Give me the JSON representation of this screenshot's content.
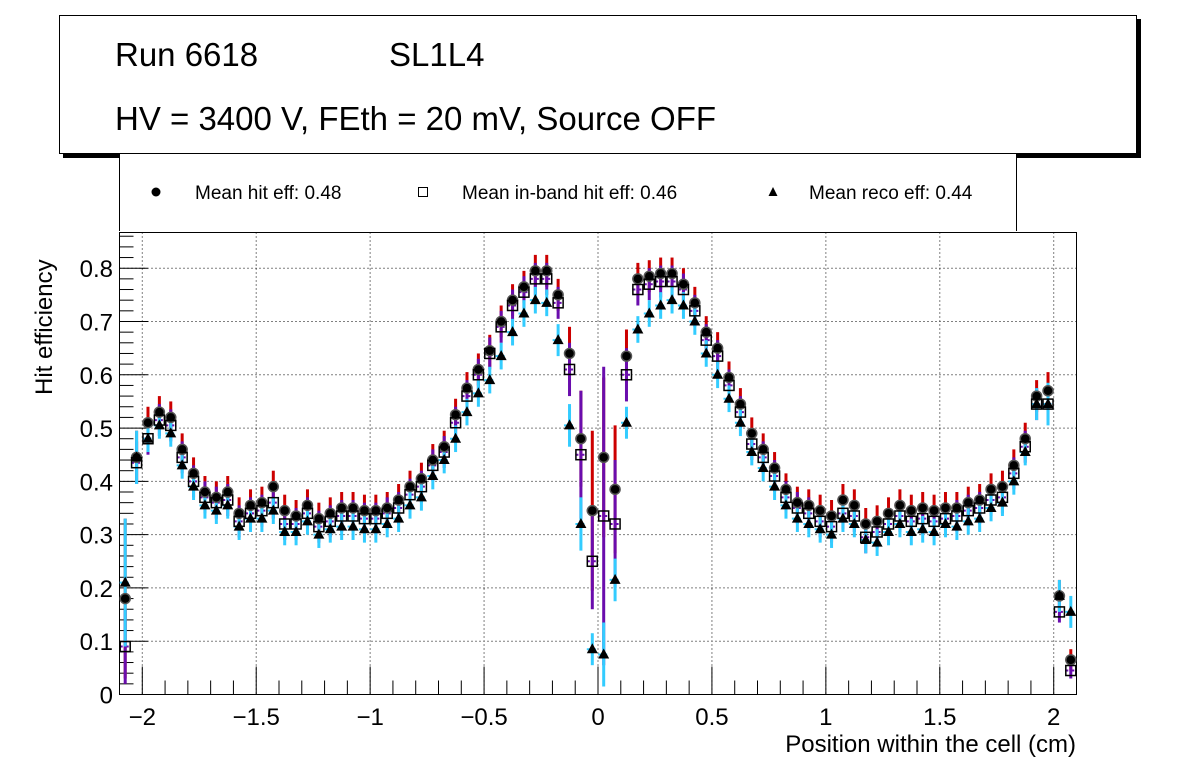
{
  "title_box": {
    "run": "Run 6618",
    "layer": "SL1L4",
    "conditions": "HV = 3400 V, FEth = 20 mV, Source OFF"
  },
  "legend": [
    {
      "marker": "filled-circle",
      "label": "Mean hit  eff: 0.48"
    },
    {
      "marker": "open-square",
      "label": "Mean in-band hit eff: 0.46"
    },
    {
      "marker": "filled-triangle",
      "label": "Mean reco eff: 0.44"
    }
  ],
  "colors": {
    "hit_error": "#cc0000",
    "inband_error": "#6a0dad",
    "reco_error": "#33ccff",
    "marker": "#000000"
  },
  "chart_data": {
    "type": "scatter",
    "title": "",
    "xlabel": "Position within the cell (cm)",
    "ylabel": "Hit efficiency",
    "xlim": [
      -2.1,
      2.1
    ],
    "ylim": [
      0,
      0.867
    ],
    "grid": true,
    "legend_position": "top",
    "x_ticks": [
      -2,
      -1.5,
      -1,
      -0.5,
      0,
      0.5,
      1,
      1.5,
      2
    ],
    "x_tick_labels": [
      "−2",
      "−1.5",
      "−1",
      "−0.5",
      "0",
      "0.5",
      "1",
      "1.5",
      "2"
    ],
    "y_ticks": [
      0,
      0.1,
      0.2,
      0.3,
      0.4,
      0.5,
      0.6,
      0.7,
      0.8
    ],
    "y_tick_labels": [
      "0",
      "0.1",
      "0.2",
      "0.3",
      "0.4",
      "0.5",
      "0.6",
      "0.7",
      "0.8"
    ],
    "x": [
      -2.075,
      -2.025,
      -1.975,
      -1.925,
      -1.875,
      -1.825,
      -1.775,
      -1.725,
      -1.675,
      -1.625,
      -1.575,
      -1.525,
      -1.475,
      -1.425,
      -1.375,
      -1.325,
      -1.275,
      -1.225,
      -1.175,
      -1.125,
      -1.075,
      -1.025,
      -0.975,
      -0.925,
      -0.875,
      -0.825,
      -0.775,
      -0.725,
      -0.675,
      -0.625,
      -0.575,
      -0.525,
      -0.475,
      -0.425,
      -0.375,
      -0.325,
      -0.275,
      -0.225,
      -0.175,
      -0.125,
      -0.075,
      -0.025,
      0.025,
      0.075,
      0.125,
      0.175,
      0.225,
      0.275,
      0.325,
      0.375,
      0.425,
      0.475,
      0.525,
      0.575,
      0.625,
      0.675,
      0.725,
      0.775,
      0.825,
      0.875,
      0.925,
      0.975,
      1.025,
      1.075,
      1.125,
      1.175,
      1.225,
      1.275,
      1.325,
      1.375,
      1.425,
      1.475,
      1.525,
      1.575,
      1.625,
      1.675,
      1.725,
      1.775,
      1.825,
      1.875,
      1.925,
      1.975,
      2.025,
      2.075
    ],
    "series": [
      {
        "name": "Mean hit eff",
        "marker": "filled-circle",
        "error_color": "#cc0000",
        "values": [
          0.18,
          0.445,
          0.51,
          0.53,
          0.52,
          0.46,
          0.415,
          0.38,
          0.37,
          0.38,
          0.34,
          0.355,
          0.36,
          0.39,
          0.345,
          0.335,
          0.355,
          0.33,
          0.34,
          0.35,
          0.35,
          0.345,
          0.345,
          0.35,
          0.365,
          0.39,
          0.405,
          0.44,
          0.465,
          0.525,
          0.575,
          0.61,
          0.645,
          0.7,
          0.74,
          0.765,
          0.795,
          0.795,
          0.75,
          0.64,
          0.48,
          0.345,
          0.445,
          0.385,
          0.635,
          0.78,
          0.785,
          0.79,
          0.79,
          0.77,
          0.735,
          0.68,
          0.65,
          0.595,
          0.545,
          0.49,
          0.46,
          0.425,
          0.385,
          0.36,
          0.355,
          0.345,
          0.335,
          0.365,
          0.355,
          0.32,
          0.325,
          0.34,
          0.355,
          0.345,
          0.35,
          0.345,
          0.35,
          0.35,
          0.36,
          0.365,
          0.385,
          0.39,
          0.43,
          0.48,
          0.56,
          0.57,
          0.185,
          0.065
        ],
        "errors": [
          0.15,
          0.05,
          0.03,
          0.03,
          0.03,
          0.03,
          0.03,
          0.03,
          0.03,
          0.03,
          0.03,
          0.03,
          0.03,
          0.03,
          0.03,
          0.03,
          0.03,
          0.03,
          0.03,
          0.03,
          0.03,
          0.03,
          0.03,
          0.03,
          0.03,
          0.03,
          0.03,
          0.03,
          0.03,
          0.03,
          0.03,
          0.03,
          0.03,
          0.03,
          0.03,
          0.03,
          0.03,
          0.03,
          0.03,
          0.05,
          0.09,
          0.15,
          0.15,
          0.12,
          0.05,
          0.03,
          0.03,
          0.03,
          0.03,
          0.03,
          0.03,
          0.03,
          0.03,
          0.03,
          0.03,
          0.03,
          0.03,
          0.03,
          0.03,
          0.03,
          0.03,
          0.03,
          0.03,
          0.03,
          0.03,
          0.03,
          0.03,
          0.03,
          0.03,
          0.03,
          0.03,
          0.03,
          0.03,
          0.03,
          0.03,
          0.03,
          0.03,
          0.03,
          0.03,
          0.03,
          0.03,
          0.035,
          0.03,
          0.02
        ]
      },
      {
        "name": "Mean in-band hit eff",
        "marker": "open-square",
        "error_color": "#6a0dad",
        "values": [
          0.09,
          0.435,
          0.48,
          0.515,
          0.505,
          0.445,
          0.4,
          0.37,
          0.36,
          0.365,
          0.325,
          0.34,
          0.345,
          0.36,
          0.32,
          0.32,
          0.34,
          0.315,
          0.325,
          0.335,
          0.335,
          0.33,
          0.33,
          0.34,
          0.35,
          0.375,
          0.39,
          0.43,
          0.455,
          0.51,
          0.56,
          0.6,
          0.64,
          0.69,
          0.73,
          0.755,
          0.78,
          0.78,
          0.735,
          0.61,
          0.45,
          0.25,
          0.335,
          0.32,
          0.6,
          0.76,
          0.77,
          0.775,
          0.775,
          0.76,
          0.72,
          0.665,
          0.635,
          0.58,
          0.53,
          0.47,
          0.445,
          0.41,
          0.37,
          0.35,
          0.34,
          0.325,
          0.315,
          0.34,
          0.335,
          0.295,
          0.305,
          0.32,
          0.335,
          0.325,
          0.33,
          0.325,
          0.33,
          0.335,
          0.345,
          0.35,
          0.365,
          0.37,
          0.415,
          0.465,
          0.545,
          0.545,
          0.155,
          0.045
        ],
        "errors": [
          0.07,
          0.04,
          0.03,
          0.03,
          0.03,
          0.03,
          0.03,
          0.03,
          0.03,
          0.03,
          0.03,
          0.03,
          0.03,
          0.03,
          0.03,
          0.03,
          0.03,
          0.03,
          0.03,
          0.03,
          0.03,
          0.03,
          0.03,
          0.03,
          0.03,
          0.03,
          0.03,
          0.03,
          0.03,
          0.03,
          0.03,
          0.03,
          0.03,
          0.03,
          0.03,
          0.03,
          0.03,
          0.03,
          0.03,
          0.05,
          0.12,
          0.09,
          0.28,
          0.12,
          0.05,
          0.03,
          0.03,
          0.03,
          0.03,
          0.03,
          0.03,
          0.03,
          0.03,
          0.03,
          0.03,
          0.03,
          0.03,
          0.03,
          0.03,
          0.03,
          0.03,
          0.03,
          0.03,
          0.03,
          0.03,
          0.03,
          0.03,
          0.03,
          0.03,
          0.03,
          0.03,
          0.03,
          0.03,
          0.03,
          0.03,
          0.03,
          0.03,
          0.03,
          0.03,
          0.03,
          0.03,
          0.03,
          0.02,
          0.015
        ]
      },
      {
        "name": "Mean reco eff",
        "marker": "filled-triangle",
        "error_color": "#33ccff",
        "values": [
          0.21,
          0.445,
          0.48,
          0.505,
          0.49,
          0.43,
          0.39,
          0.355,
          0.345,
          0.355,
          0.315,
          0.33,
          0.33,
          0.345,
          0.305,
          0.305,
          0.325,
          0.3,
          0.31,
          0.315,
          0.315,
          0.31,
          0.31,
          0.32,
          0.33,
          0.355,
          0.37,
          0.41,
          0.44,
          0.48,
          0.53,
          0.565,
          0.59,
          0.635,
          0.68,
          0.715,
          0.74,
          0.735,
          0.665,
          0.505,
          0.32,
          0.085,
          0.075,
          0.215,
          0.51,
          0.685,
          0.715,
          0.73,
          0.74,
          0.73,
          0.7,
          0.64,
          0.6,
          0.555,
          0.51,
          0.455,
          0.425,
          0.39,
          0.355,
          0.33,
          0.32,
          0.31,
          0.3,
          0.33,
          0.32,
          0.29,
          0.285,
          0.305,
          0.32,
          0.305,
          0.31,
          0.305,
          0.32,
          0.315,
          0.325,
          0.33,
          0.35,
          0.36,
          0.4,
          0.455,
          0.545,
          0.545,
          0.185,
          0.155
        ],
        "errors": [
          0.12,
          0.05,
          0.025,
          0.025,
          0.025,
          0.025,
          0.025,
          0.025,
          0.025,
          0.025,
          0.025,
          0.025,
          0.025,
          0.025,
          0.025,
          0.025,
          0.025,
          0.025,
          0.025,
          0.025,
          0.025,
          0.025,
          0.025,
          0.025,
          0.025,
          0.025,
          0.025,
          0.025,
          0.025,
          0.025,
          0.025,
          0.025,
          0.025,
          0.025,
          0.025,
          0.025,
          0.025,
          0.025,
          0.03,
          0.04,
          0.05,
          0.03,
          0.06,
          0.04,
          0.03,
          0.025,
          0.025,
          0.025,
          0.025,
          0.025,
          0.025,
          0.025,
          0.025,
          0.025,
          0.025,
          0.025,
          0.025,
          0.025,
          0.025,
          0.025,
          0.025,
          0.025,
          0.025,
          0.025,
          0.025,
          0.025,
          0.025,
          0.025,
          0.025,
          0.025,
          0.025,
          0.025,
          0.025,
          0.025,
          0.025,
          0.025,
          0.025,
          0.025,
          0.025,
          0.025,
          0.03,
          0.04,
          0.03,
          0.03
        ]
      }
    ]
  }
}
